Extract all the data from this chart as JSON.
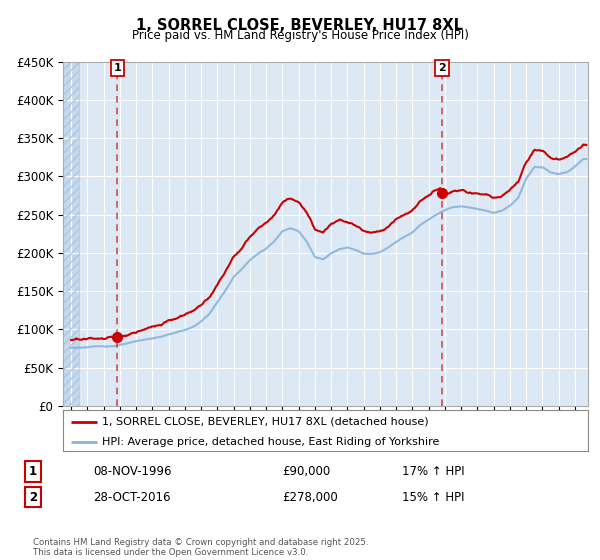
{
  "title": "1, SORREL CLOSE, BEVERLEY, HU17 8XL",
  "subtitle": "Price paid vs. HM Land Registry's House Price Index (HPI)",
  "legend_line1": "1, SORREL CLOSE, BEVERLEY, HU17 8XL (detached house)",
  "legend_line2": "HPI: Average price, detached house, East Riding of Yorkshire",
  "transaction1_label": "1",
  "transaction1_date": "08-NOV-1996",
  "transaction1_price": "£90,000",
  "transaction1_hpi": "17% ↑ HPI",
  "transaction2_label": "2",
  "transaction2_date": "28-OCT-2016",
  "transaction2_price": "£278,000",
  "transaction2_hpi": "15% ↑ HPI",
  "footer": "Contains HM Land Registry data © Crown copyright and database right 2025.\nThis data is licensed under the Open Government Licence v3.0.",
  "price_color": "#cc0000",
  "hpi_color": "#89b4d9",
  "vline_color": "#cc3333",
  "marker_color": "#cc0000",
  "bg_color": "#dce9f5",
  "hatch_color": "#c5d8ec",
  "ylim": [
    0,
    450000
  ],
  "yticks": [
    0,
    50000,
    100000,
    150000,
    200000,
    250000,
    300000,
    350000,
    400000,
    450000
  ],
  "transaction1_year": 1996.85,
  "transaction1_value": 90000,
  "transaction2_year": 2016.82,
  "transaction2_value": 278000,
  "xmin": 1993.5,
  "xmax": 2025.8
}
